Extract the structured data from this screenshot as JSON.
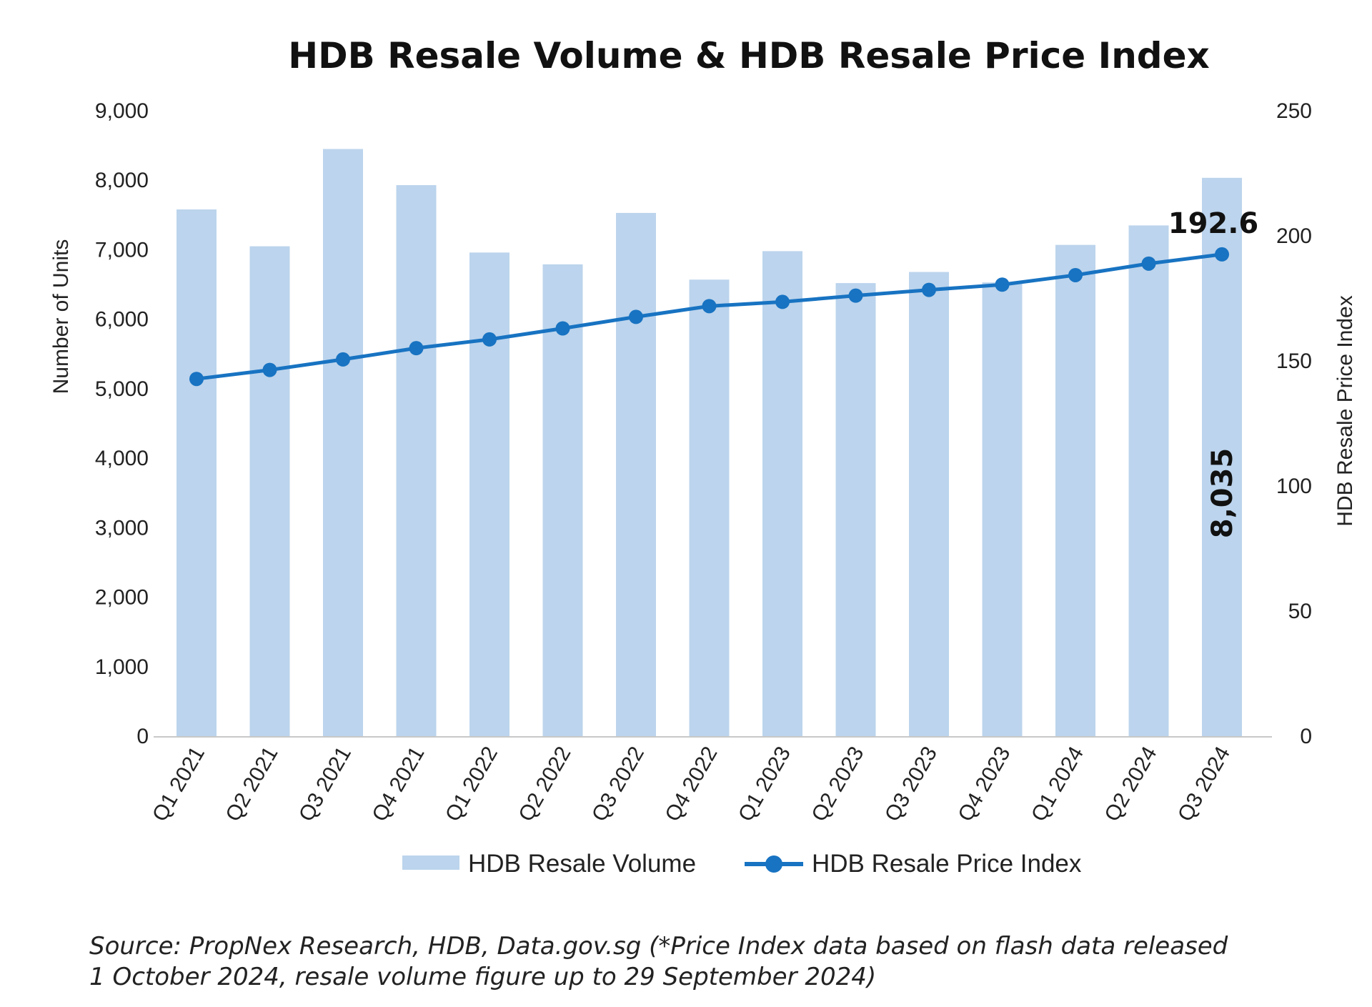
{
  "chart_data": {
    "type": "bar+line",
    "title": "HDB Resale Volume & HDB Resale Price Index",
    "categories": [
      "Q1 2021",
      "Q2 2021",
      "Q3 2021",
      "Q4 2021",
      "Q1 2022",
      "Q2 2022",
      "Q3 2022",
      "Q4 2022",
      "Q1 2023",
      "Q2 2023",
      "Q3 2023",
      "Q4 2023",
      "Q1 2024",
      "Q2 2024",
      "Q3 2024"
    ],
    "series": [
      {
        "name": "HDB Resale Volume",
        "type": "bar",
        "axis": "left",
        "color": "#bcd4ed",
        "values": [
          7580,
          7050,
          8450,
          7930,
          6960,
          6790,
          7530,
          6570,
          6980,
          6520,
          6680,
          6530,
          7070,
          7350,
          8035
        ]
      },
      {
        "name": "HDB Resale Price Index",
        "type": "line",
        "axis": "right",
        "color": "#1873c2",
        "values": [
          142.8,
          146.4,
          150.6,
          155.1,
          158.6,
          163.0,
          167.6,
          171.9,
          173.6,
          176.1,
          178.4,
          180.5,
          184.3,
          188.9,
          192.6
        ]
      }
    ],
    "left_axis": {
      "label": "Number of Units",
      "min": 0,
      "max": 9000,
      "ticks": [
        0,
        1000,
        2000,
        3000,
        4000,
        5000,
        6000,
        7000,
        8000,
        9000
      ],
      "tick_labels": [
        "0",
        "1,000",
        "2,000",
        "3,000",
        "4,000",
        "5,000",
        "6,000",
        "7,000",
        "8,000",
        "9,000"
      ]
    },
    "right_axis": {
      "label": "HDB Resale Price Index",
      "min": 0,
      "max": 250,
      "ticks": [
        0,
        50,
        100,
        150,
        200,
        250
      ],
      "tick_labels": [
        "0",
        "50",
        "100",
        "150",
        "200",
        "250"
      ]
    },
    "annotations": {
      "last_index_label": "192.6",
      "last_volume_label": "8,035"
    },
    "grid": false,
    "legend_position": "bottom"
  },
  "footer": {
    "source_line1": "Source: PropNex Research, HDB, Data.gov.sg (*Price Index data based on flash data released",
    "source_line2": "1 October 2024, resale volume figure up to 29 September 2024)"
  }
}
